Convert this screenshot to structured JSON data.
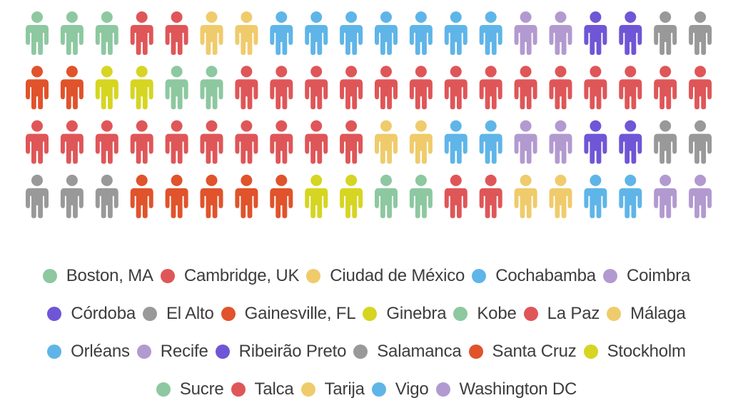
{
  "chart_data": {
    "type": "pictograph",
    "icon": "person-icon",
    "palette": {
      "mint": "#8dc8a0",
      "red": "#df5658",
      "yellow": "#efcb6c",
      "blue": "#5fb5e8",
      "lavender": "#b29ad0",
      "indigo": "#6f56d6",
      "gray": "#999999",
      "orange": "#e0532b",
      "lime": "#d6d522"
    },
    "categories": [
      {
        "name": "Boston, MA",
        "color": "mint",
        "count": 3
      },
      {
        "name": "Cambridge, UK",
        "color": "red",
        "count": 2
      },
      {
        "name": "Ciudad de México",
        "color": "yellow",
        "count": 2
      },
      {
        "name": "Cochabamba",
        "color": "blue",
        "count": 7
      },
      {
        "name": "Coimbra",
        "color": "lavender",
        "count": 2
      },
      {
        "name": "Córdoba",
        "color": "indigo",
        "count": 2
      },
      {
        "name": "El Alto",
        "color": "gray",
        "count": 2
      },
      {
        "name": "Gainesville, FL",
        "color": "orange",
        "count": 2
      },
      {
        "name": "Ginebra",
        "color": "lime",
        "count": 2
      },
      {
        "name": "Kobe",
        "color": "mint",
        "count": 2
      },
      {
        "name": "La Paz",
        "color": "red",
        "count": 24
      },
      {
        "name": "Málaga",
        "color": "yellow",
        "count": 2
      },
      {
        "name": "Orléans",
        "color": "blue",
        "count": 2
      },
      {
        "name": "Recife",
        "color": "lavender",
        "count": 2
      },
      {
        "name": "Ribeirão Preto",
        "color": "indigo",
        "count": 2
      },
      {
        "name": "Salamanca",
        "color": "gray",
        "count": 5
      },
      {
        "name": "Santa Cruz",
        "color": "orange",
        "count": 5
      },
      {
        "name": "Stockholm",
        "color": "lime",
        "count": 2
      },
      {
        "name": "Sucre",
        "color": "mint",
        "count": 2
      },
      {
        "name": "Talca",
        "color": "red",
        "count": 2
      },
      {
        "name": "Tarija",
        "color": "yellow",
        "count": 2
      },
      {
        "name": "Vigo",
        "color": "blue",
        "count": 2
      },
      {
        "name": "Washington DC",
        "color": "lavender",
        "count": 2
      }
    ],
    "grid": {
      "rows": 4,
      "columns": 20,
      "total": 80
    },
    "legend_position": "bottom"
  }
}
